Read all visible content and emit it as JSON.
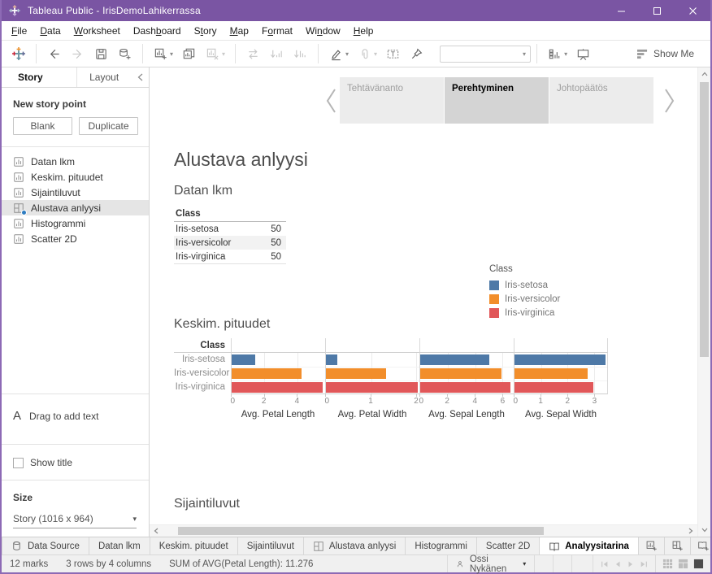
{
  "window": {
    "title": "Tableau Public - IrisDemoLahikerrassa"
  },
  "menu": {
    "items": [
      {
        "label": "File",
        "u": 0
      },
      {
        "label": "Data",
        "u": 0
      },
      {
        "label": "Worksheet",
        "u": 0
      },
      {
        "label": "Dashboard",
        "u": 4
      },
      {
        "label": "Story",
        "u": 1
      },
      {
        "label": "Map",
        "u": 0
      },
      {
        "label": "Format",
        "u": 1
      },
      {
        "label": "Window",
        "u": 2
      },
      {
        "label": "Help",
        "u": 0
      }
    ]
  },
  "toolbar": {
    "show_me_label": "Show Me",
    "items": [
      {
        "type": "icon",
        "name": "tableau-logo-icon"
      },
      {
        "type": "divider"
      },
      {
        "type": "icon",
        "name": "back-arrow-icon"
      },
      {
        "type": "icon",
        "name": "forward-arrow-icon",
        "disabled": true
      },
      {
        "type": "icon",
        "name": "save-icon"
      },
      {
        "type": "icon",
        "name": "add-data-icon"
      },
      {
        "type": "divider"
      },
      {
        "type": "icon",
        "name": "new-worksheet-icon",
        "caret": true
      },
      {
        "type": "icon",
        "name": "duplicate-sheet-icon"
      },
      {
        "type": "icon",
        "name": "clear-sheet-icon",
        "disabled": true,
        "caret": true
      },
      {
        "type": "divider"
      },
      {
        "type": "icon",
        "name": "swap-axes-icon",
        "disabled": true
      },
      {
        "type": "icon",
        "name": "sort-ascending-icon",
        "disabled": true
      },
      {
        "type": "icon",
        "name": "sort-descending-icon",
        "disabled": true
      },
      {
        "type": "divider"
      },
      {
        "type": "icon",
        "name": "highlighter-icon",
        "caret": true
      },
      {
        "type": "icon",
        "name": "hyperlink-icon",
        "disabled": true,
        "caret": true
      },
      {
        "type": "icon",
        "name": "text-object-icon"
      },
      {
        "type": "icon",
        "name": "pin-icon"
      },
      {
        "type": "gap"
      },
      {
        "type": "combobox",
        "name": "toolbar-combobox"
      },
      {
        "type": "divider"
      },
      {
        "type": "icon",
        "name": "fit-selector-icon",
        "caret": true
      },
      {
        "type": "icon",
        "name": "presentation-mode-icon"
      },
      {
        "type": "flex"
      },
      {
        "type": "showme"
      }
    ]
  },
  "left_panel": {
    "story_tab": "Story",
    "layout_tab": "Layout",
    "new_story_point": "New story point",
    "blank_button": "Blank",
    "duplicate_button": "Duplicate",
    "sheets": [
      {
        "label": "Datan lkm",
        "icon": "worksheet-icon",
        "selected": false
      },
      {
        "label": "Keskim. pituudet",
        "icon": "worksheet-icon",
        "selected": false
      },
      {
        "label": "Sijaintiluvut",
        "icon": "worksheet-icon",
        "selected": false
      },
      {
        "label": "Alustava anlyysi",
        "icon": "dashboard-icon",
        "selected": true
      },
      {
        "label": "Histogrammi",
        "icon": "worksheet-icon",
        "selected": false
      },
      {
        "label": "Scatter 2D",
        "icon": "worksheet-icon",
        "selected": false
      }
    ],
    "drag_to_add_text": "Drag to add text",
    "show_title": {
      "label": "Show title",
      "checked": false
    },
    "size_label": "Size",
    "size_value": "Story (1016 x 964)"
  },
  "story_nav": {
    "points": [
      {
        "label": "Tehtävänanto",
        "active": false
      },
      {
        "label": "Perehtyminen",
        "active": true
      },
      {
        "label": "Johtopäätös",
        "active": false
      }
    ]
  },
  "canvas": {
    "title": "Alustava anlyysi",
    "section1": "Datan lkm",
    "section2": "Keskim. pituudet",
    "section3": "Sijaintiluvut",
    "count_table": {
      "header": "Class",
      "rows": [
        {
          "label": "Iris-setosa",
          "value": "50"
        },
        {
          "label": "Iris-versicolor",
          "value": "50"
        },
        {
          "label": "Iris-virginica",
          "value": "50"
        }
      ]
    },
    "legend": {
      "title": "Class",
      "items": [
        {
          "label": "Iris-setosa",
          "color": "#4e79a7"
        },
        {
          "label": "Iris-versicolor",
          "color": "#f28e2b"
        },
        {
          "label": "Iris-virginica",
          "color": "#e15759"
        }
      ]
    }
  },
  "chart_data": {
    "type": "bar",
    "orientation": "horizontal",
    "row_header": "Class",
    "categories": [
      "Iris-setosa",
      "Iris-versicolor",
      "Iris-virginica"
    ],
    "colors": [
      "#4e79a7",
      "#f28e2b",
      "#e15759"
    ],
    "panels": [
      {
        "xlabel": "Avg. Petal Length",
        "ticks": [
          0,
          2,
          4
        ],
        "xmax": 5.7,
        "values": [
          1.46,
          4.26,
          5.55
        ]
      },
      {
        "xlabel": "Avg. Petal Width",
        "ticks": [
          0,
          1,
          2
        ],
        "xmax": 2.07,
        "values": [
          0.25,
          1.33,
          2.03
        ]
      },
      {
        "xlabel": "Avg. Sepal Length",
        "ticks": [
          0,
          2,
          4,
          6
        ],
        "xmax": 6.8,
        "values": [
          5.01,
          5.94,
          6.59
        ]
      },
      {
        "xlabel": "Avg. Sepal Width",
        "ticks": [
          0,
          1,
          2,
          3
        ],
        "xmax": 3.5,
        "values": [
          3.43,
          2.77,
          2.97
        ]
      }
    ]
  },
  "bottom_tabs": {
    "tabs": [
      {
        "label": "Data Source",
        "icon": "data-source-icon",
        "active": false
      },
      {
        "label": "Datan lkm",
        "active": false
      },
      {
        "label": "Keskim. pituudet",
        "active": false
      },
      {
        "label": "Sijaintiluvut",
        "active": false
      },
      {
        "label": "Alustava anlyysi",
        "icon": "dashboard-icon",
        "active": false
      },
      {
        "label": "Histogrammi",
        "active": false
      },
      {
        "label": "Scatter 2D",
        "active": false
      },
      {
        "label": "Analyysitarina",
        "icon": "story-icon",
        "active": true
      }
    ],
    "actions": [
      "new-worksheet-tab-icon",
      "new-dashboard-tab-icon",
      "new-story-tab-icon"
    ]
  },
  "status_bar": {
    "marks": "12 marks",
    "dimensions": "3 rows by 4 columns",
    "aggregate": "SUM of AVG(Petal Length): 11.276",
    "user": "Ossi Nykänen"
  }
}
